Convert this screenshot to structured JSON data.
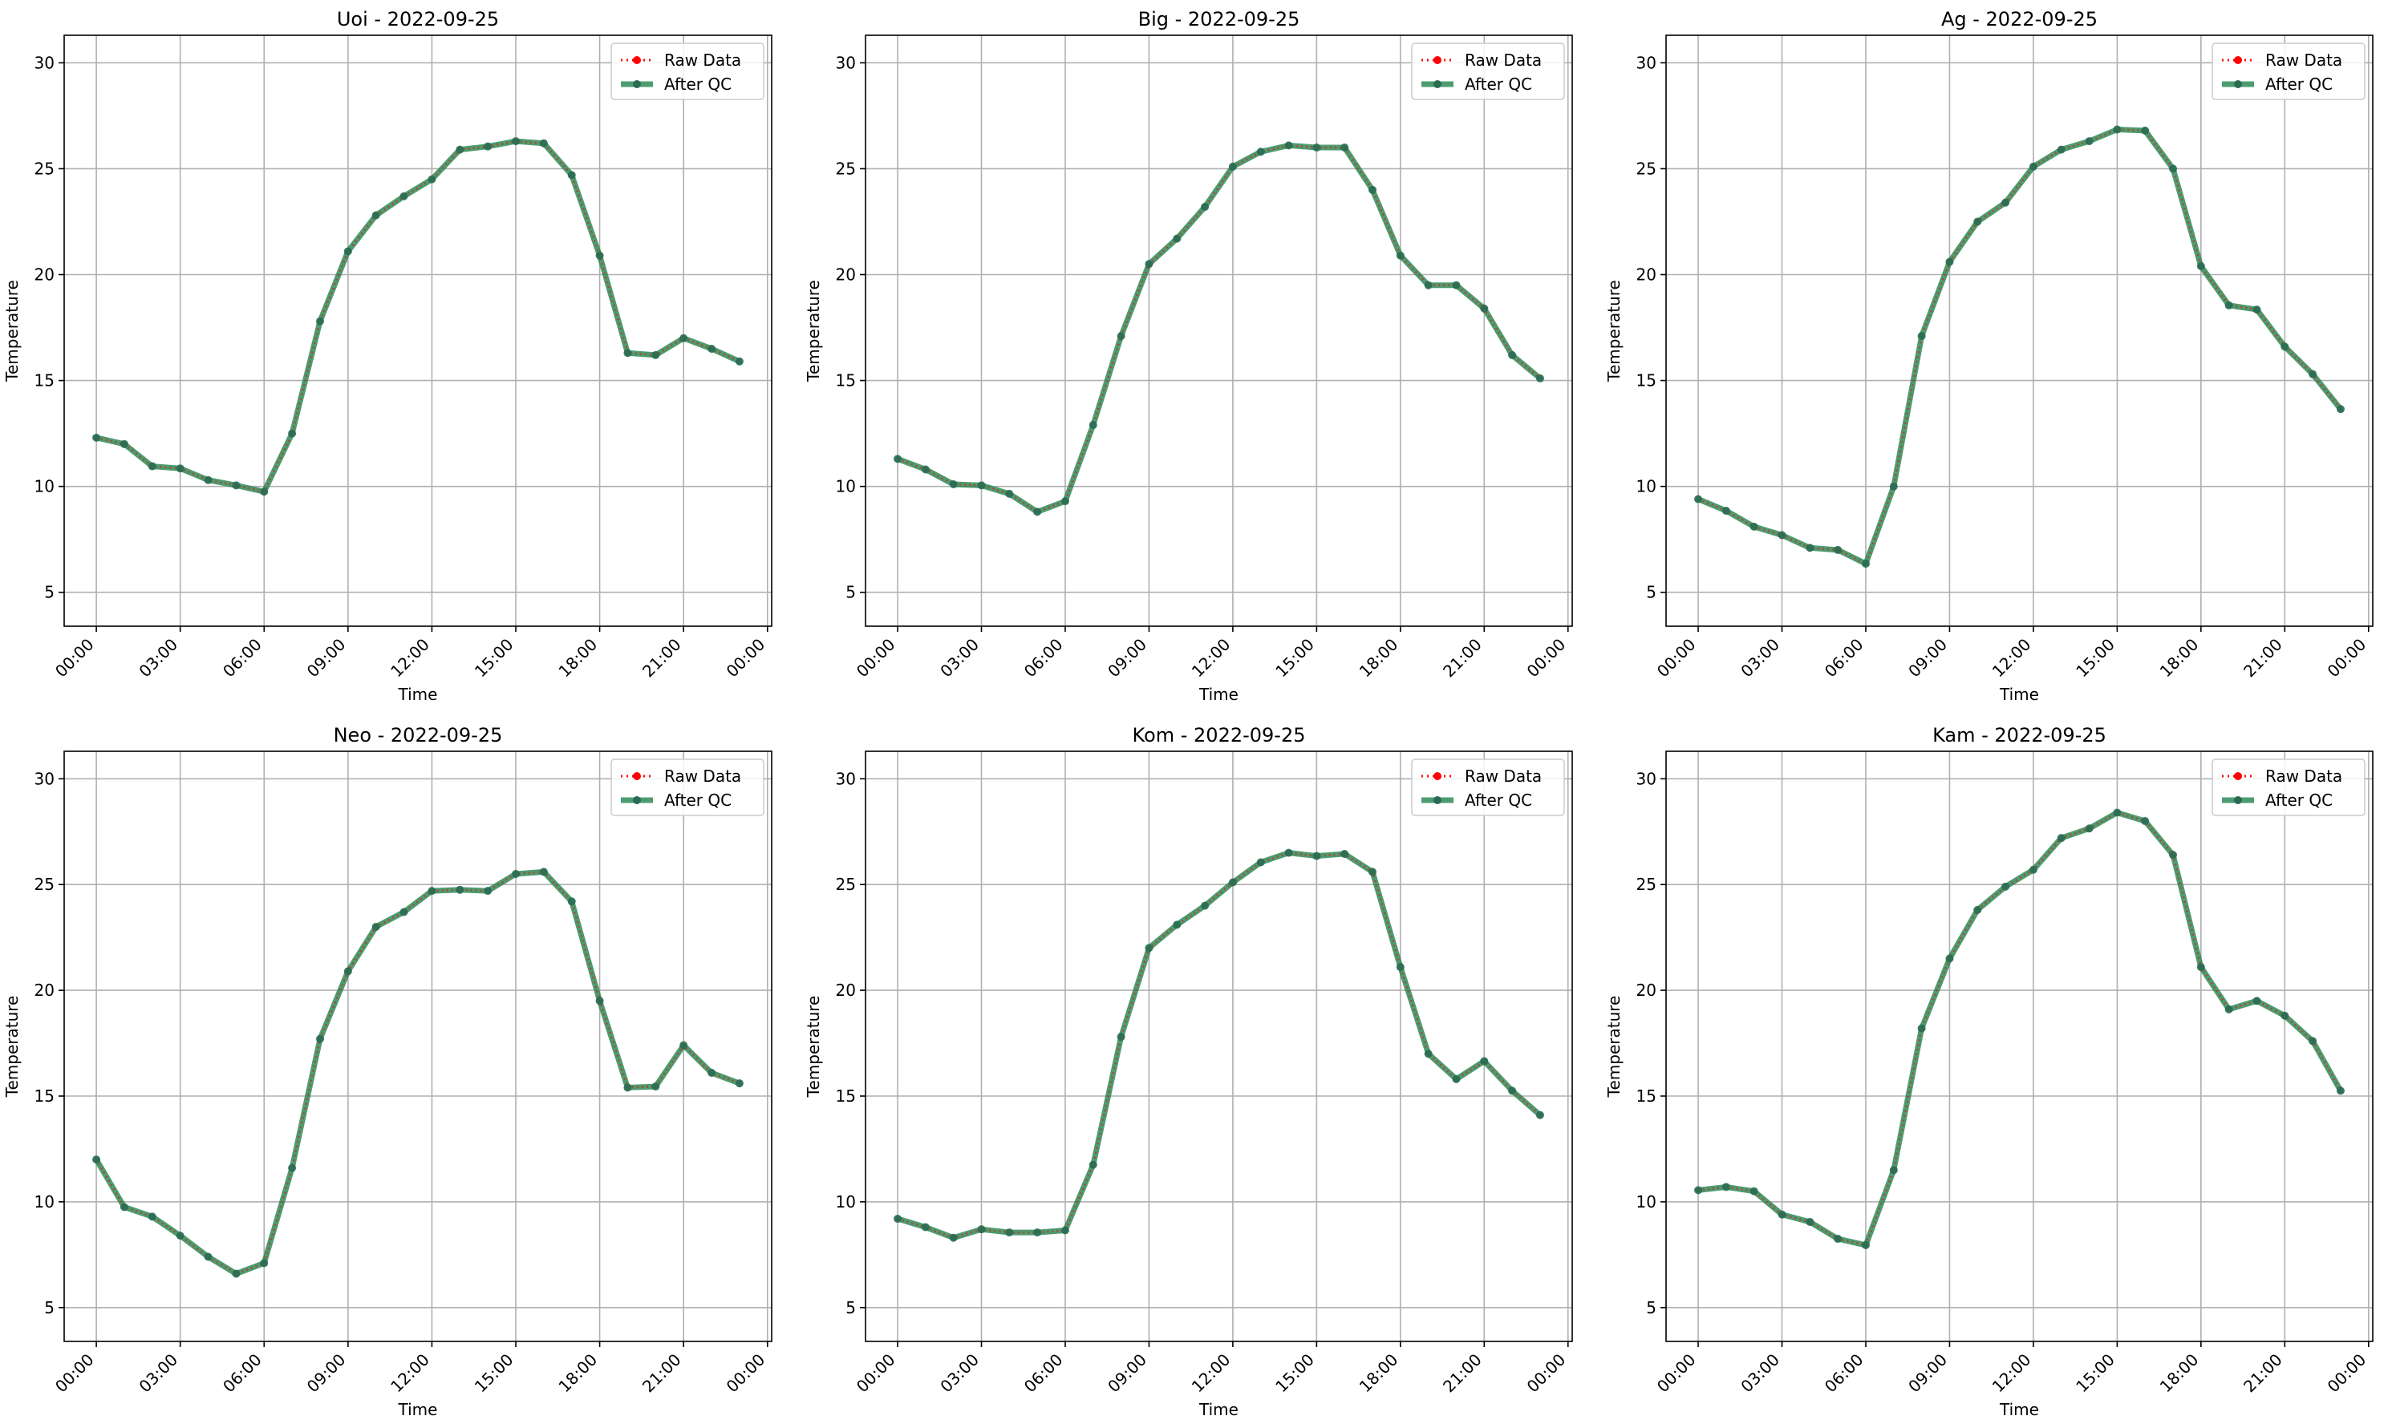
{
  "colors": {
    "raw": "#ff0000",
    "qc": "#2e8b57",
    "grid": "#b0b0b0",
    "axes": "#000000"
  },
  "legend_labels": {
    "raw": "Raw Data",
    "qc": "After QC"
  },
  "chart_data": [
    {
      "type": "line",
      "title": "Uoi - 2022-09-25",
      "xlabel": "Time",
      "ylabel": "Temperature",
      "xticks": [
        "00:00",
        "03:00",
        "06:00",
        "09:00",
        "12:00",
        "15:00",
        "18:00",
        "21:00",
        "00:00"
      ],
      "yticks": [
        5,
        10,
        15,
        20,
        25,
        30
      ],
      "ylim": [
        3.4,
        31.3
      ],
      "grid": true,
      "legend": "upper right",
      "x": [
        "00:00",
        "01:00",
        "02:00",
        "03:00",
        "04:00",
        "05:00",
        "06:00",
        "07:00",
        "08:00",
        "09:00",
        "10:00",
        "11:00",
        "12:00",
        "13:00",
        "14:00",
        "15:00",
        "16:00",
        "17:00",
        "18:00",
        "19:00",
        "20:00",
        "21:00",
        "22:00",
        "23:00"
      ],
      "series": [
        {
          "name": "Raw Data",
          "values": [
            12.3,
            12.0,
            10.95,
            10.85,
            10.3,
            10.05,
            9.75,
            12.5,
            17.8,
            21.1,
            22.8,
            23.7,
            24.5,
            25.9,
            26.05,
            26.3,
            26.2,
            24.7,
            20.9,
            16.3,
            16.2,
            17.0,
            16.5,
            15.9
          ]
        },
        {
          "name": "After QC",
          "values": [
            12.3,
            12.0,
            10.95,
            10.85,
            10.3,
            10.05,
            9.75,
            12.5,
            17.8,
            21.1,
            22.8,
            23.7,
            24.5,
            25.9,
            26.05,
            26.3,
            26.2,
            24.7,
            20.9,
            16.3,
            16.2,
            17.0,
            16.5,
            15.9
          ]
        }
      ]
    },
    {
      "type": "line",
      "title": "Big - 2022-09-25",
      "xlabel": "Time",
      "ylabel": "Temperature",
      "xticks": [
        "00:00",
        "03:00",
        "06:00",
        "09:00",
        "12:00",
        "15:00",
        "18:00",
        "21:00",
        "00:00"
      ],
      "yticks": [
        5,
        10,
        15,
        20,
        25,
        30
      ],
      "ylim": [
        3.4,
        31.3
      ],
      "grid": true,
      "legend": "upper right",
      "x": [
        "00:00",
        "01:00",
        "02:00",
        "03:00",
        "04:00",
        "05:00",
        "06:00",
        "07:00",
        "08:00",
        "09:00",
        "10:00",
        "11:00",
        "12:00",
        "13:00",
        "14:00",
        "15:00",
        "16:00",
        "17:00",
        "18:00",
        "19:00",
        "20:00",
        "21:00",
        "22:00",
        "23:00"
      ],
      "series": [
        {
          "name": "Raw Data",
          "values": [
            11.3,
            10.8,
            10.1,
            10.05,
            9.65,
            8.8,
            9.3,
            12.9,
            17.1,
            20.5,
            21.7,
            23.2,
            25.1,
            25.8,
            26.1,
            26.0,
            26.0,
            24.0,
            20.9,
            19.5,
            19.5,
            18.4,
            16.2,
            15.1
          ]
        },
        {
          "name": "After QC",
          "values": [
            11.3,
            10.8,
            10.1,
            10.05,
            9.65,
            8.8,
            9.3,
            12.9,
            17.1,
            20.5,
            21.7,
            23.2,
            25.1,
            25.8,
            26.1,
            26.0,
            26.0,
            24.0,
            20.9,
            19.5,
            19.5,
            18.4,
            16.2,
            15.1
          ]
        }
      ]
    },
    {
      "type": "line",
      "title": "Ag - 2022-09-25",
      "xlabel": "Time",
      "ylabel": "Temperature",
      "xticks": [
        "00:00",
        "03:00",
        "06:00",
        "09:00",
        "12:00",
        "15:00",
        "18:00",
        "21:00",
        "00:00"
      ],
      "yticks": [
        5,
        10,
        15,
        20,
        25,
        30
      ],
      "ylim": [
        3.4,
        31.3
      ],
      "grid": true,
      "legend": "upper right",
      "x": [
        "00:00",
        "01:00",
        "02:00",
        "03:00",
        "04:00",
        "05:00",
        "06:00",
        "07:00",
        "08:00",
        "09:00",
        "10:00",
        "11:00",
        "12:00",
        "13:00",
        "14:00",
        "15:00",
        "16:00",
        "17:00",
        "18:00",
        "19:00",
        "20:00",
        "21:00",
        "22:00",
        "23:00"
      ],
      "series": [
        {
          "name": "Raw Data",
          "values": [
            9.4,
            8.85,
            8.1,
            7.7,
            7.1,
            7.0,
            6.35,
            10.0,
            17.1,
            20.6,
            22.5,
            23.4,
            25.1,
            25.9,
            26.3,
            26.85,
            26.8,
            25.0,
            20.4,
            18.55,
            18.35,
            16.6,
            15.3,
            13.65
          ]
        },
        {
          "name": "After QC",
          "values": [
            9.4,
            8.85,
            8.1,
            7.7,
            7.1,
            7.0,
            6.35,
            10.0,
            17.1,
            20.6,
            22.5,
            23.4,
            25.1,
            25.9,
            26.3,
            26.85,
            26.8,
            25.0,
            20.4,
            18.55,
            18.35,
            16.6,
            15.3,
            13.65
          ]
        }
      ]
    },
    {
      "type": "line",
      "title": "Neo - 2022-09-25",
      "xlabel": "Time",
      "ylabel": "Temperature",
      "xticks": [
        "00:00",
        "03:00",
        "06:00",
        "09:00",
        "12:00",
        "15:00",
        "18:00",
        "21:00",
        "00:00"
      ],
      "yticks": [
        5,
        10,
        15,
        20,
        25,
        30
      ],
      "ylim": [
        3.4,
        31.3
      ],
      "grid": true,
      "legend": "upper right",
      "x": [
        "00:00",
        "01:00",
        "02:00",
        "03:00",
        "04:00",
        "05:00",
        "06:00",
        "07:00",
        "08:00",
        "09:00",
        "10:00",
        "11:00",
        "12:00",
        "13:00",
        "14:00",
        "15:00",
        "16:00",
        "17:00",
        "18:00",
        "19:00",
        "20:00",
        "21:00",
        "22:00",
        "23:00"
      ],
      "series": [
        {
          "name": "Raw Data",
          "values": [
            12.0,
            9.75,
            9.3,
            8.4,
            7.4,
            6.6,
            7.1,
            11.6,
            17.7,
            20.9,
            23.0,
            23.7,
            24.7,
            24.75,
            24.7,
            25.5,
            25.6,
            24.2,
            19.5,
            15.4,
            15.45,
            17.4,
            16.1,
            15.6
          ]
        },
        {
          "name": "After QC",
          "values": [
            12.0,
            9.75,
            9.3,
            8.4,
            7.4,
            6.6,
            7.1,
            11.6,
            17.7,
            20.9,
            23.0,
            23.7,
            24.7,
            24.75,
            24.7,
            25.5,
            25.6,
            24.2,
            19.5,
            15.4,
            15.45,
            17.4,
            16.1,
            15.6
          ]
        }
      ]
    },
    {
      "type": "line",
      "title": "Kom - 2022-09-25",
      "xlabel": "Time",
      "ylabel": "Temperature",
      "xticks": [
        "00:00",
        "03:00",
        "06:00",
        "09:00",
        "12:00",
        "15:00",
        "18:00",
        "21:00",
        "00:00"
      ],
      "yticks": [
        5,
        10,
        15,
        20,
        25,
        30
      ],
      "ylim": [
        3.4,
        31.3
      ],
      "grid": true,
      "legend": "upper right",
      "x": [
        "00:00",
        "01:00",
        "02:00",
        "03:00",
        "04:00",
        "05:00",
        "06:00",
        "07:00",
        "08:00",
        "09:00",
        "10:00",
        "11:00",
        "12:00",
        "13:00",
        "14:00",
        "15:00",
        "16:00",
        "17:00",
        "18:00",
        "19:00",
        "20:00",
        "21:00",
        "22:00",
        "23:00"
      ],
      "series": [
        {
          "name": "Raw Data",
          "values": [
            9.2,
            8.8,
            8.3,
            8.7,
            8.55,
            8.55,
            8.65,
            11.75,
            17.8,
            22.0,
            23.1,
            24.0,
            25.1,
            26.05,
            26.5,
            26.35,
            26.45,
            25.6,
            21.1,
            17.0,
            15.8,
            16.65,
            15.25,
            14.1
          ]
        },
        {
          "name": "After QC",
          "values": [
            9.2,
            8.8,
            8.3,
            8.7,
            8.55,
            8.55,
            8.65,
            11.75,
            17.8,
            22.0,
            23.1,
            24.0,
            25.1,
            26.05,
            26.5,
            26.35,
            26.45,
            25.6,
            21.1,
            17.0,
            15.8,
            16.65,
            15.25,
            14.1
          ]
        }
      ]
    },
    {
      "type": "line",
      "title": "Kam - 2022-09-25",
      "xlabel": "Time",
      "ylabel": "Temperature",
      "xticks": [
        "00:00",
        "03:00",
        "06:00",
        "09:00",
        "12:00",
        "15:00",
        "18:00",
        "21:00",
        "00:00"
      ],
      "yticks": [
        5,
        10,
        15,
        20,
        25,
        30
      ],
      "ylim": [
        3.4,
        31.3
      ],
      "grid": true,
      "legend": "upper right",
      "x": [
        "00:00",
        "01:00",
        "02:00",
        "03:00",
        "04:00",
        "05:00",
        "06:00",
        "07:00",
        "08:00",
        "09:00",
        "10:00",
        "11:00",
        "12:00",
        "13:00",
        "14:00",
        "15:00",
        "16:00",
        "17:00",
        "18:00",
        "19:00",
        "20:00",
        "21:00",
        "22:00",
        "23:00"
      ],
      "series": [
        {
          "name": "Raw Data",
          "values": [
            10.55,
            10.7,
            10.5,
            9.4,
            9.05,
            8.25,
            7.95,
            11.5,
            18.2,
            21.5,
            23.8,
            24.9,
            25.7,
            27.2,
            27.65,
            28.4,
            28.0,
            26.4,
            21.1,
            19.1,
            19.5,
            18.8,
            17.6,
            15.25
          ]
        },
        {
          "name": "After QC",
          "values": [
            10.55,
            10.7,
            10.5,
            9.4,
            9.05,
            8.25,
            7.95,
            11.5,
            18.2,
            21.5,
            23.8,
            24.9,
            25.7,
            27.2,
            27.65,
            28.4,
            28.0,
            26.4,
            21.1,
            19.1,
            19.5,
            18.8,
            17.6,
            15.25
          ]
        }
      ]
    }
  ]
}
